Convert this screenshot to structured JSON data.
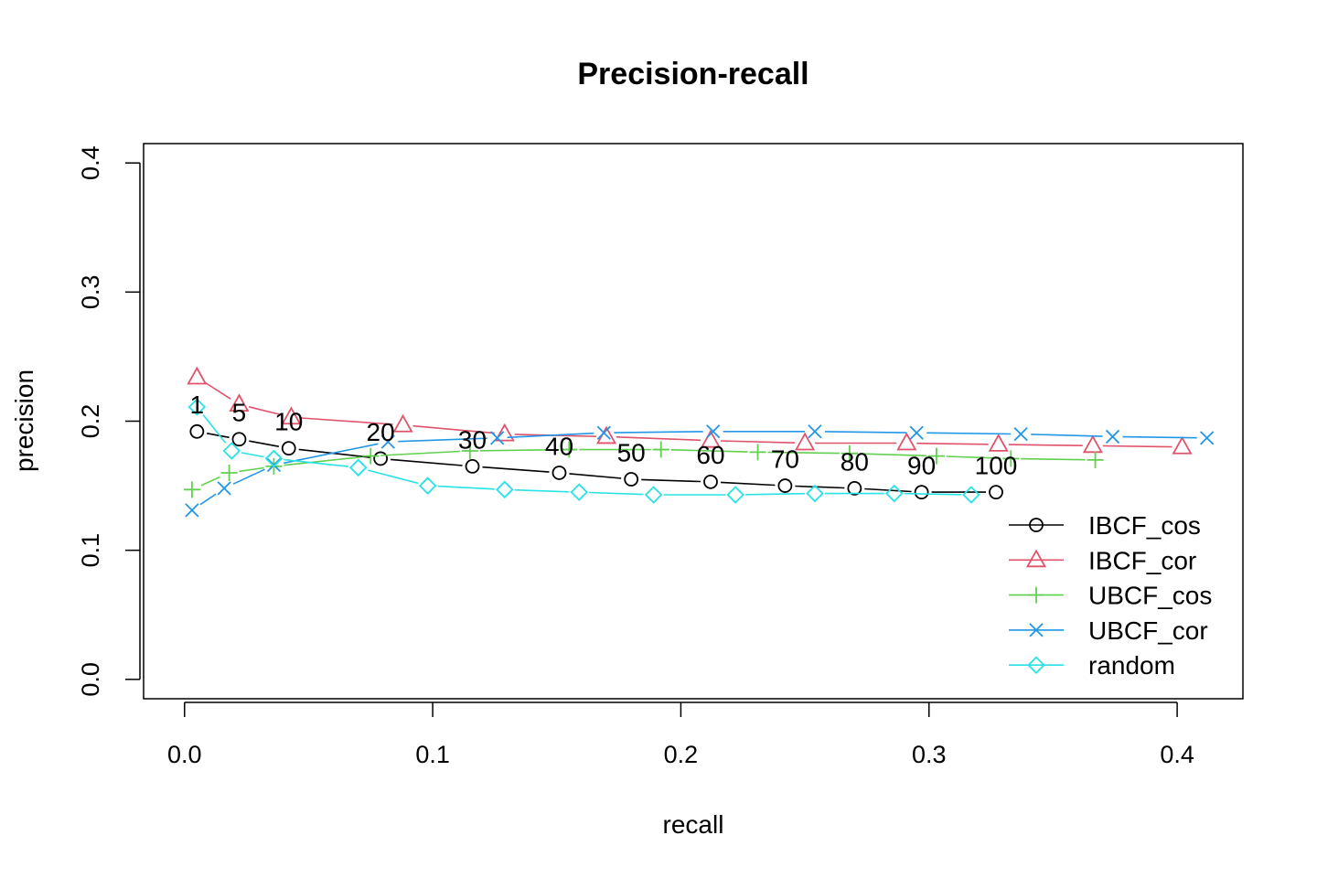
{
  "chart_data": {
    "type": "line",
    "title": "Precision-recall",
    "xlabel": "recall",
    "ylabel": "precision",
    "xlim": [
      -0.0165,
      0.4265
    ],
    "ylim": [
      -0.015,
      0.415
    ],
    "x_ticks": [
      "0.0",
      "0.1",
      "0.2",
      "0.3",
      "0.4"
    ],
    "y_ticks": [
      "0.0",
      "0.1",
      "0.2",
      "0.3",
      "0.4"
    ],
    "x_tick_values": [
      0,
      0.1,
      0.2,
      0.3,
      0.4
    ],
    "y_tick_values": [
      0,
      0.1,
      0.2,
      0.3,
      0.4
    ],
    "legend_position": "bottom-right",
    "grid": false,
    "series": [
      {
        "name": "IBCF_cos",
        "color": "#000000",
        "marker": "circle",
        "x": [
          0.005,
          0.022,
          0.042,
          0.079,
          0.116,
          0.151,
          0.18,
          0.212,
          0.242,
          0.27,
          0.297,
          0.327
        ],
        "y": [
          0.192,
          0.186,
          0.179,
          0.171,
          0.165,
          0.16,
          0.155,
          0.153,
          0.15,
          0.148,
          0.145,
          0.145
        ]
      },
      {
        "name": "IBCF_cor",
        "color": "#DF536B",
        "marker": "triangle",
        "x": [
          0.005,
          0.022,
          0.043,
          0.088,
          0.129,
          0.17,
          0.212,
          0.25,
          0.291,
          0.328,
          0.366,
          0.402
        ],
        "y": [
          0.234,
          0.213,
          0.203,
          0.197,
          0.19,
          0.188,
          0.185,
          0.183,
          0.183,
          0.182,
          0.181,
          0.18
        ]
      },
      {
        "name": "UBCF_cos",
        "color": "#61D04F",
        "marker": "plus",
        "x": [
          0.003,
          0.018,
          0.036,
          0.075,
          0.115,
          0.155,
          0.192,
          0.231,
          0.268,
          0.303,
          0.333,
          0.367
        ],
        "y": [
          0.147,
          0.16,
          0.165,
          0.173,
          0.177,
          0.178,
          0.178,
          0.176,
          0.175,
          0.173,
          0.171,
          0.17
        ]
      },
      {
        "name": "UBCF_cor",
        "color": "#2297E6",
        "marker": "x",
        "x": [
          0.003,
          0.016,
          0.036,
          0.082,
          0.126,
          0.169,
          0.213,
          0.254,
          0.295,
          0.337,
          0.374,
          0.412
        ],
        "y": [
          0.131,
          0.148,
          0.166,
          0.184,
          0.187,
          0.191,
          0.192,
          0.192,
          0.191,
          0.19,
          0.188,
          0.187
        ]
      },
      {
        "name": "random",
        "color": "#28E2E5",
        "marker": "diamond",
        "x": [
          0.005,
          0.019,
          0.036,
          0.07,
          0.098,
          0.129,
          0.159,
          0.189,
          0.222,
          0.254,
          0.286,
          0.317
        ],
        "y": [
          0.211,
          0.177,
          0.171,
          0.164,
          0.15,
          0.147,
          0.145,
          0.143,
          0.143,
          0.144,
          0.144,
          0.143
        ]
      }
    ],
    "annotations": [
      {
        "text": "1",
        "x": 0.005,
        "y": 0.213
      },
      {
        "text": "5",
        "x": 0.022,
        "y": 0.207
      },
      {
        "text": "10",
        "x": 0.042,
        "y": 0.2
      },
      {
        "text": "20",
        "x": 0.079,
        "y": 0.192
      },
      {
        "text": "30",
        "x": 0.116,
        "y": 0.186
      },
      {
        "text": "40",
        "x": 0.151,
        "y": 0.181
      },
      {
        "text": "50",
        "x": 0.18,
        "y": 0.176
      },
      {
        "text": "60",
        "x": 0.212,
        "y": 0.174
      },
      {
        "text": "70",
        "x": 0.242,
        "y": 0.171
      },
      {
        "text": "80",
        "x": 0.27,
        "y": 0.169
      },
      {
        "text": "90",
        "x": 0.297,
        "y": 0.166
      },
      {
        "text": "100",
        "x": 0.327,
        "y": 0.166
      }
    ]
  }
}
